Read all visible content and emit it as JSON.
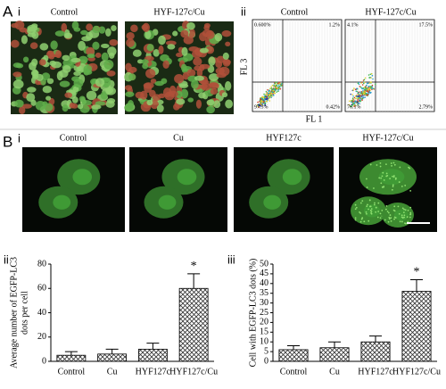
{
  "figure": {
    "panel_a": {
      "label": "A",
      "sub_i": "i",
      "images": [
        "Control",
        "HYF-127c/Cu"
      ],
      "sub_ii": "ii",
      "flow": [
        {
          "title": "Control",
          "quadrants": [
            "0.600%",
            "1.2%",
            "97.3%",
            "0.42%"
          ]
        },
        {
          "title": "HYF-127c/Cu",
          "quadrants": [
            "4.1%",
            "17.5%",
            "76.1%",
            "2.79%"
          ]
        }
      ],
      "x_axis": "FL 1",
      "y_axis": "FL 3"
    },
    "panel_b": {
      "label": "B",
      "sub_i": "i",
      "images": [
        "Control",
        "Cu",
        "HYF127c",
        "HYF-127c/Cu"
      ]
    }
  },
  "chart_data": [
    {
      "type": "bar",
      "panel": "ii",
      "ylabel": [
        "Average number of EGFP-LC3",
        "dots per cell"
      ],
      "categories": [
        "Control",
        "Cu",
        "HYF127c",
        "HYF127c/Cu"
      ],
      "values": [
        5,
        6,
        10,
        60
      ],
      "errors": [
        3,
        4,
        5,
        12
      ],
      "markers": [
        null,
        null,
        null,
        "*"
      ],
      "ylim": [
        0,
        80
      ],
      "yticks": [
        0,
        20,
        40,
        60,
        80
      ]
    },
    {
      "type": "bar",
      "panel": "iii",
      "ylabel": [
        "Cell with EGFP-LC3 dots (%)"
      ],
      "categories": [
        "Control",
        "Cu",
        "HYF127c",
        "HYF127c/Cu"
      ],
      "values": [
        6,
        7,
        10,
        36
      ],
      "errors": [
        2,
        3,
        3,
        6
      ],
      "markers": [
        null,
        null,
        null,
        "*"
      ],
      "ylim": [
        0,
        50
      ],
      "yticks": [
        0,
        5,
        10,
        15,
        20,
        25,
        30,
        35,
        40,
        45,
        50
      ]
    }
  ]
}
